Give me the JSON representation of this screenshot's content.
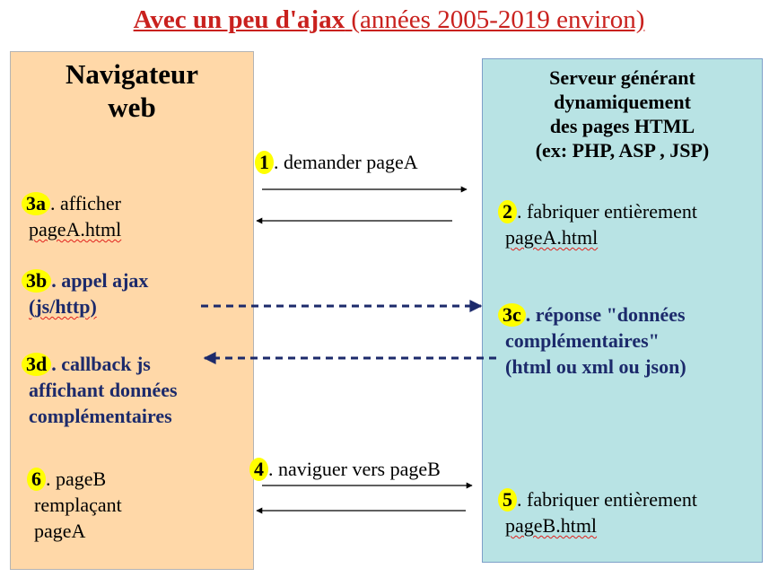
{
  "title": {
    "bold": "Avec un peu d'ajax",
    "normal": " (années 2005-2019 environ)"
  },
  "client": {
    "title_line1": "Navigateur",
    "title_line2": "web"
  },
  "server": {
    "title_line1": "Serveur  générant",
    "title_line2": "dynamiquement",
    "title_line3": "des pages HTML",
    "title_line4": "(ex: PHP, ASP , JSP)"
  },
  "steps": {
    "s1": {
      "num": "1",
      "text": ". demander pageA"
    },
    "s2": {
      "num": "2",
      "text": ". fabriquer entièrement",
      "line2": "pageA.html"
    },
    "s3a": {
      "num": "3a",
      "text": ". afficher",
      "line2": "pageA.html"
    },
    "s3b": {
      "num": "3b",
      "text": ". appel ajax",
      "line2": "(js/http)"
    },
    "s3c": {
      "num": "3c",
      "text": ". réponse \"données",
      "line2": "complémentaires\"",
      "line3": "(html ou xml ou json)"
    },
    "s3d": {
      "num": "3d",
      "text": ". callback js",
      "line2": "affichant données",
      "line3": "complémentaires"
    },
    "s4": {
      "num": "4",
      "text": ". naviguer vers pageB"
    },
    "s5": {
      "num": "5",
      "text": ". fabriquer entièrement",
      "line2": "pageB.html"
    },
    "s6": {
      "num": "6",
      "text": ". pageB",
      "line2": "remplaçant",
      "line3": "pageA"
    }
  },
  "colors": {
    "title": "#c9211e",
    "client_box": "#ffd8a8",
    "server_box": "#b8e3e4",
    "badge": "#ffff00",
    "ajax_arrow": "#1c2a6b"
  }
}
